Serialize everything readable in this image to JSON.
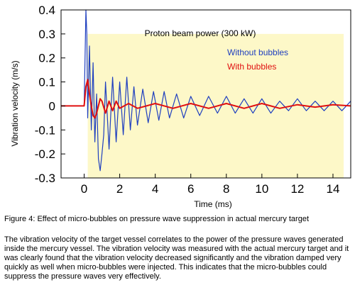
{
  "chart_data": {
    "type": "line",
    "xlabel": "Time (ms)",
    "ylabel": "Vibration velocity (m/s)",
    "xlim": [
      -1.3,
      15
    ],
    "ylim": [
      -0.3,
      0.4
    ],
    "x_ticks": [
      0,
      2,
      4,
      6,
      8,
      10,
      12,
      14
    ],
    "y_ticks": [
      -0.3,
      -0.2,
      -0.1,
      0,
      0.1,
      0.2,
      0.3,
      0.4
    ],
    "x_tick_labels": [
      "0",
      "2",
      "4",
      "6",
      "8",
      "10",
      "12",
      "14"
    ],
    "y_tick_labels": [
      "-0.3",
      "-0.2",
      "-0.1",
      "0",
      "0.1",
      "0.2",
      "0.3",
      "0.4"
    ],
    "grid": false,
    "shaded_region": {
      "x": [
        0.2,
        14.6
      ],
      "y": [
        -0.3,
        0.3
      ],
      "color": "#fdf8c8"
    },
    "annotation": "Proton beam power (300 kW)",
    "series": [
      {
        "name": "Without bubbles",
        "color": "#1f3fbf",
        "x": [
          -1.3,
          0.0,
          0.05,
          0.1,
          0.15,
          0.2,
          0.3,
          0.4,
          0.5,
          0.6,
          0.7,
          0.8,
          0.9,
          1.0,
          1.1,
          1.2,
          1.4,
          1.6,
          1.8,
          2.0,
          2.2,
          2.4,
          2.6,
          2.8,
          3.0,
          3.3,
          3.6,
          3.9,
          4.2,
          4.5,
          4.8,
          5.2,
          5.6,
          6.0,
          6.5,
          7.0,
          7.5,
          8.0,
          8.5,
          9.0,
          9.5,
          10.0,
          10.5,
          11.0,
          11.5,
          12.0,
          12.5,
          13.0,
          13.5,
          14.0,
          14.5,
          15.0
        ],
        "values": [
          0.0,
          0.0,
          0.2,
          0.4,
          0.3,
          -0.05,
          0.25,
          -0.1,
          0.18,
          -0.15,
          0.05,
          -0.22,
          -0.27,
          -0.2,
          -0.12,
          0.1,
          -0.18,
          0.12,
          -0.15,
          0.1,
          -0.12,
          0.12,
          -0.1,
          0.08,
          -0.08,
          0.07,
          -0.07,
          0.06,
          -0.06,
          0.06,
          -0.05,
          0.05,
          -0.05,
          0.04,
          -0.04,
          0.04,
          -0.03,
          0.04,
          -0.03,
          0.03,
          -0.03,
          0.03,
          -0.03,
          0.02,
          -0.02,
          0.03,
          -0.02,
          0.02,
          -0.02,
          0.02,
          -0.02,
          0.02
        ]
      },
      {
        "name": "With bubbles",
        "color": "#e01010",
        "x": [
          -1.3,
          0.0,
          0.1,
          0.2,
          0.3,
          0.4,
          0.5,
          0.6,
          0.7,
          0.8,
          0.9,
          1.0,
          1.2,
          1.4,
          1.6,
          1.8,
          2.0,
          2.5,
          3.0,
          4.0,
          5.0,
          6.0,
          7.0,
          8.0,
          9.0,
          10.0,
          11.0,
          12.0,
          13.0,
          14.0,
          15.0
        ],
        "values": [
          0.0,
          0.0,
          0.08,
          0.11,
          0.05,
          0.0,
          -0.04,
          -0.05,
          -0.03,
          0.0,
          0.03,
          0.02,
          -0.03,
          0.02,
          -0.02,
          0.02,
          -0.01,
          0.01,
          -0.01,
          0.01,
          -0.01,
          0.01,
          -0.01,
          0.01,
          -0.01,
          0.01,
          -0.01,
          0.005,
          -0.005,
          0.005,
          0.0
        ]
      }
    ]
  },
  "caption": "Figure 4: Effect of micro-bubbles on pressure wave suppression in actual mercury target",
  "body_text": "The vibration velocity of the target vessel correlates to the power of the pressure waves generated inside the mercury vessel. The vibration velocity was measured with the actual mercury target and it was clearly found that the vibration velocity decreased significantly and the vibration damped very quickly as well when micro-bubbles were injected. This indicates that the micro-bubbles could suppress the pressure waves very effectively."
}
